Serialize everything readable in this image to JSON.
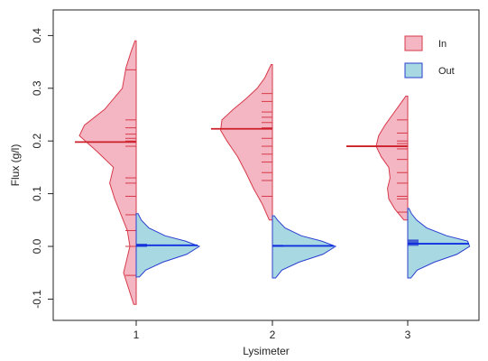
{
  "chart_data": {
    "type": "split violin (bean plot)",
    "xlabel": "Lysimeter",
    "ylabel": "Flux (g/l)",
    "categories": [
      "1",
      "2",
      "3"
    ],
    "ylim": [
      -0.12,
      0.43
    ],
    "yticks": [
      "-0.1",
      "0.0",
      "0.1",
      "0.2",
      "0.3",
      "0.4"
    ],
    "legend_position": "top-right",
    "series": [
      {
        "name": "In",
        "side": "left",
        "fill_color": "#f4b6c2",
        "line_color": "#d63a4a",
        "mean_line_color": "#cc1f2a",
        "groups": [
          {
            "category": "1",
            "mean": 0.198,
            "min": -0.11,
            "max": 0.39,
            "observations": [
              0.335,
              0.24,
              0.225,
              0.213,
              0.205,
              0.2,
              0.19,
              0.13,
              0.12,
              0.095,
              0.06,
              0.03,
              0.0,
              -0.055
            ],
            "density": [
              [
                -0.11,
                0.04
              ],
              [
                -0.08,
                0.12
              ],
              [
                -0.05,
                0.2
              ],
              [
                -0.02,
                0.14
              ],
              [
                0.0,
                0.1
              ],
              [
                0.03,
                0.14
              ],
              [
                0.06,
                0.24
              ],
              [
                0.09,
                0.34
              ],
              [
                0.12,
                0.42
              ],
              [
                0.15,
                0.36
              ],
              [
                0.18,
                0.62
              ],
              [
                0.21,
                0.9
              ],
              [
                0.23,
                0.82
              ],
              [
                0.26,
                0.5
              ],
              [
                0.3,
                0.22
              ],
              [
                0.34,
                0.16
              ],
              [
                0.37,
                0.08
              ],
              [
                0.39,
                0.02
              ]
            ]
          },
          {
            "category": "2",
            "mean": 0.223,
            "min": 0.05,
            "max": 0.345,
            "observations": [
              0.29,
              0.275,
              0.255,
              0.245,
              0.235,
              0.225,
              0.205,
              0.19,
              0.175,
              0.16,
              0.14,
              0.125,
              0.095
            ],
            "density": [
              [
                0.05,
                0.05
              ],
              [
                0.08,
                0.16
              ],
              [
                0.11,
                0.3
              ],
              [
                0.14,
                0.42
              ],
              [
                0.17,
                0.55
              ],
              [
                0.2,
                0.72
              ],
              [
                0.22,
                0.82
              ],
              [
                0.24,
                0.8
              ],
              [
                0.26,
                0.62
              ],
              [
                0.28,
                0.42
              ],
              [
                0.3,
                0.24
              ],
              [
                0.32,
                0.12
              ],
              [
                0.345,
                0.02
              ]
            ]
          },
          {
            "category": "3",
            "mean": 0.19,
            "min": 0.05,
            "max": 0.285,
            "observations": [
              0.24,
              0.215,
              0.2,
              0.195,
              0.19,
              0.185,
              0.165,
              0.14,
              0.12,
              0.095,
              0.09,
              0.065
            ],
            "density": [
              [
                0.05,
                0.06
              ],
              [
                0.07,
                0.2
              ],
              [
                0.09,
                0.3
              ],
              [
                0.11,
                0.32
              ],
              [
                0.13,
                0.28
              ],
              [
                0.15,
                0.3
              ],
              [
                0.17,
                0.42
              ],
              [
                0.19,
                0.5
              ],
              [
                0.21,
                0.46
              ],
              [
                0.23,
                0.36
              ],
              [
                0.25,
                0.24
              ],
              [
                0.27,
                0.12
              ],
              [
                0.285,
                0.03
              ]
            ]
          }
        ]
      },
      {
        "name": "Out",
        "side": "right",
        "fill_color": "#a8d8e2",
        "line_color": "#2a3fd1",
        "mean_line_color": "#1030e0",
        "groups": [
          {
            "category": "1",
            "mean": 0.002,
            "min": -0.058,
            "max": 0.062,
            "observations": [
              0.004,
              0.003,
              0.002,
              0.001,
              0.0
            ],
            "density": [
              [
                -0.058,
                0.05
              ],
              [
                -0.045,
                0.15
              ],
              [
                -0.03,
                0.42
              ],
              [
                -0.015,
                0.8
              ],
              [
                0.0,
                1.0
              ],
              [
                0.01,
                0.78
              ],
              [
                0.02,
                0.46
              ],
              [
                0.035,
                0.2
              ],
              [
                0.05,
                0.08
              ],
              [
                0.062,
                0.03
              ]
            ]
          },
          {
            "category": "2",
            "mean": 0.001,
            "min": -0.06,
            "max": 0.058,
            "observations": [
              0.002,
              0.001,
              0.0
            ],
            "density": [
              [
                -0.06,
                0.05
              ],
              [
                -0.045,
                0.15
              ],
              [
                -0.03,
                0.42
              ],
              [
                -0.015,
                0.8
              ],
              [
                0.0,
                1.0
              ],
              [
                0.01,
                0.78
              ],
              [
                0.02,
                0.46
              ],
              [
                0.035,
                0.2
              ],
              [
                0.05,
                0.08
              ],
              [
                0.058,
                0.03
              ]
            ]
          },
          {
            "category": "3",
            "mean": 0.005,
            "min": -0.06,
            "max": 0.072,
            "observations": [
              0.012,
              0.01,
              0.008,
              0.006,
              0.004,
              0.002
            ],
            "density": [
              [
                -0.06,
                0.05
              ],
              [
                -0.045,
                0.15
              ],
              [
                -0.03,
                0.42
              ],
              [
                -0.015,
                0.78
              ],
              [
                0.0,
                0.98
              ],
              [
                0.01,
                0.95
              ],
              [
                0.02,
                0.62
              ],
              [
                0.035,
                0.3
              ],
              [
                0.05,
                0.14
              ],
              [
                0.062,
                0.06
              ],
              [
                0.072,
                0.02
              ]
            ]
          }
        ]
      }
    ]
  }
}
